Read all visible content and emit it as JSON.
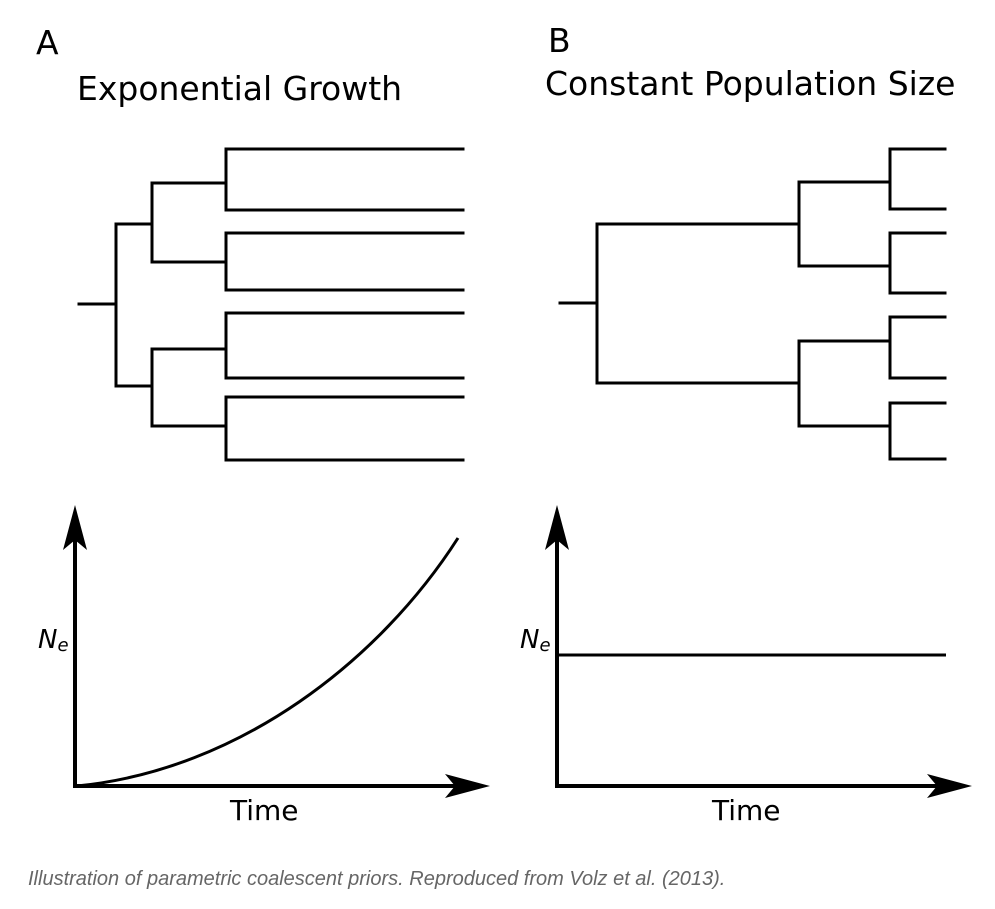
{
  "panels": [
    {
      "letter": "A",
      "title": "Exponential Growth",
      "plot": {
        "y_label_main": "N",
        "y_label_sub": "e",
        "x_label": "Time",
        "curve": "exponential"
      }
    },
    {
      "letter": "B",
      "title": "Constant Population Size",
      "plot": {
        "y_label_main": "N",
        "y_label_sub": "e",
        "x_label": "Time",
        "curve": "constant"
      }
    }
  ],
  "caption": "Illustration of parametric coalescent priors. Reproduced from Volz et al. (2013)."
}
